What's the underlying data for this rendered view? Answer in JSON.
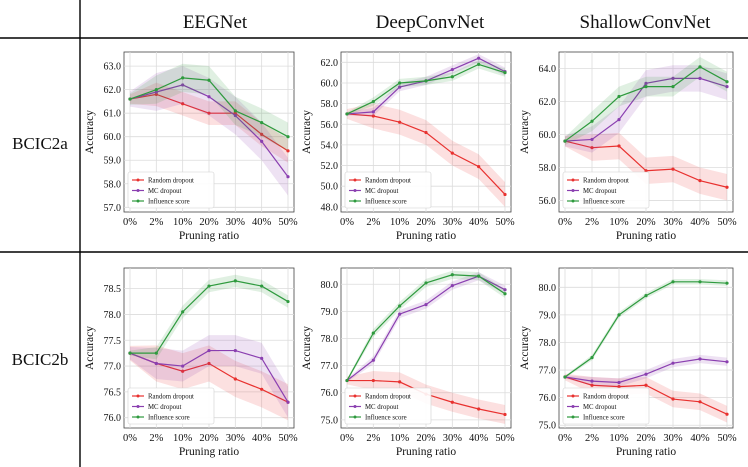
{
  "layout_labels": {
    "columns": [
      "EEGNet",
      "DeepConvNet",
      "ShallowConvNet"
    ],
    "rows": [
      "BCIC2a",
      "BCIC2b"
    ]
  },
  "legend_labels": [
    "Random dropout",
    "MC dropout",
    "Influence score"
  ],
  "colors": {
    "random": "#e8312f",
    "mc": "#8a3fb0",
    "influence": "#2e9a3e",
    "grid": "#dcdcdc"
  },
  "chart_data": [
    {
      "id": "bcic2a-eegnet",
      "type": "line",
      "row": "BCIC2a",
      "model": "EEGNet",
      "xlabel": "Pruning ratio",
      "ylabel": "Accuracy",
      "categories": [
        "0%",
        "2%",
        "10%",
        "20%",
        "30%",
        "40%",
        "50%"
      ],
      "ylim": [
        56.8,
        63.6
      ],
      "yticks": [
        57.0,
        58.0,
        59.0,
        60.0,
        61.0,
        62.0,
        63.0
      ],
      "ytick_decimals": 1,
      "legend": "bottom-left",
      "series": [
        {
          "name": "Random dropout",
          "values": [
            61.6,
            61.8,
            61.4,
            61.0,
            61.0,
            60.1,
            59.4
          ],
          "band": 0.5
        },
        {
          "name": "MC dropout",
          "values": [
            61.6,
            61.9,
            62.2,
            61.7,
            60.9,
            59.8,
            58.3
          ],
          "band": 0.8
        },
        {
          "name": "Influence score",
          "values": [
            61.6,
            62.0,
            62.5,
            62.4,
            61.1,
            60.6,
            60.0
          ],
          "band": 0.6
        }
      ]
    },
    {
      "id": "bcic2a-deepconvnet",
      "type": "line",
      "row": "BCIC2a",
      "model": "DeepConvNet",
      "xlabel": "Pruning ratio",
      "ylabel": "Accuracy",
      "categories": [
        "0%",
        "2%",
        "10%",
        "20%",
        "30%",
        "40%",
        "50%"
      ],
      "ylim": [
        47.5,
        63.0
      ],
      "yticks": [
        48.0,
        50.0,
        52.0,
        54.0,
        56.0,
        58.0,
        60.0,
        62.0
      ],
      "ytick_decimals": 1,
      "legend": "bottom-left",
      "series": [
        {
          "name": "Random dropout",
          "values": [
            57.0,
            56.8,
            56.2,
            55.2,
            53.2,
            51.9,
            49.2
          ],
          "band": 1.2
        },
        {
          "name": "MC dropout",
          "values": [
            57.0,
            57.2,
            59.6,
            60.2,
            61.3,
            62.4,
            61.1
          ],
          "band": 0.4
        },
        {
          "name": "Influence score",
          "values": [
            57.0,
            58.2,
            60.0,
            60.2,
            60.6,
            61.8,
            61.0
          ],
          "band": 0.4
        }
      ]
    },
    {
      "id": "bcic2a-shallowconvnet",
      "type": "line",
      "row": "BCIC2a",
      "model": "ShallowConvNet",
      "xlabel": "Pruning ratio",
      "ylabel": "Accuracy",
      "categories": [
        "0%",
        "2%",
        "10%",
        "20%",
        "30%",
        "40%",
        "50%"
      ],
      "ylim": [
        55.3,
        65.0
      ],
      "yticks": [
        56.0,
        58.0,
        60.0,
        62.0,
        64.0
      ],
      "ytick_decimals": 1,
      "legend": "bottom-left",
      "series": [
        {
          "name": "Random dropout",
          "values": [
            59.6,
            59.2,
            59.3,
            57.8,
            57.9,
            57.2,
            56.8
          ],
          "band": 0.8
        },
        {
          "name": "MC dropout",
          "values": [
            59.6,
            59.7,
            60.9,
            63.1,
            63.4,
            63.4,
            62.9
          ],
          "band": 0.8
        },
        {
          "name": "Influence score",
          "values": [
            59.6,
            60.8,
            62.3,
            62.9,
            62.9,
            64.1,
            63.2
          ],
          "band": 0.6
        }
      ]
    },
    {
      "id": "bcic2b-eegnet",
      "type": "line",
      "row": "BCIC2b",
      "model": "EEGNet",
      "xlabel": "Pruning ratio",
      "ylabel": "Accuracy",
      "categories": [
        "0%",
        "2%",
        "10%",
        "20%",
        "30%",
        "40%",
        "50%"
      ],
      "ylim": [
        75.8,
        78.9
      ],
      "yticks": [
        76.0,
        76.5,
        77.0,
        77.5,
        78.0,
        78.5
      ],
      "ytick_decimals": 1,
      "legend": "bottom-left",
      "series": [
        {
          "name": "Random dropout",
          "values": [
            77.25,
            77.05,
            76.9,
            77.05,
            76.75,
            76.55,
            76.3
          ],
          "band": 0.35
        },
        {
          "name": "MC dropout",
          "values": [
            77.25,
            77.05,
            77.0,
            77.3,
            77.3,
            77.15,
            76.3
          ],
          "band": 0.3
        },
        {
          "name": "Influence score",
          "values": [
            77.25,
            77.25,
            78.05,
            78.55,
            78.65,
            78.55,
            78.25
          ],
          "band": 0.12
        }
      ]
    },
    {
      "id": "bcic2b-deepconvnet",
      "type": "line",
      "row": "BCIC2b",
      "model": "DeepConvNet",
      "xlabel": "Pruning ratio",
      "ylabel": "Accuracy",
      "categories": [
        "0%",
        "2%",
        "10%",
        "20%",
        "30%",
        "40%",
        "50%"
      ],
      "ylim": [
        74.7,
        80.6
      ],
      "yticks": [
        75.0,
        76.0,
        77.0,
        78.0,
        79.0,
        80.0
      ],
      "ytick_decimals": 1,
      "legend": "bottom-left",
      "series": [
        {
          "name": "Random dropout",
          "values": [
            76.45,
            76.45,
            76.4,
            75.95,
            75.65,
            75.4,
            75.2
          ],
          "band": 0.35
        },
        {
          "name": "MC dropout",
          "values": [
            76.45,
            77.2,
            78.9,
            79.25,
            79.95,
            80.3,
            79.8
          ],
          "band": 0.15
        },
        {
          "name": "Influence score",
          "values": [
            76.45,
            78.2,
            79.2,
            80.05,
            80.35,
            80.3,
            79.65
          ],
          "band": 0.15
        }
      ]
    },
    {
      "id": "bcic2b-shallowconvnet",
      "type": "line",
      "row": "BCIC2b",
      "model": "ShallowConvNet",
      "xlabel": "Pruning ratio",
      "ylabel": "Accuracy",
      "categories": [
        "0%",
        "2%",
        "10%",
        "20%",
        "30%",
        "40%",
        "50%"
      ],
      "ylim": [
        74.9,
        80.7
      ],
      "yticks": [
        75.0,
        76.0,
        77.0,
        78.0,
        79.0,
        80.0
      ],
      "ytick_decimals": 1,
      "legend": "bottom-left",
      "series": [
        {
          "name": "Random dropout",
          "values": [
            76.75,
            76.45,
            76.4,
            76.45,
            75.95,
            75.85,
            75.4
          ],
          "band": 0.3
        },
        {
          "name": "MC dropout",
          "values": [
            76.75,
            76.6,
            76.55,
            76.85,
            77.25,
            77.4,
            77.3
          ],
          "band": 0.15
        },
        {
          "name": "Influence score",
          "values": [
            76.75,
            77.45,
            79.0,
            79.7,
            80.2,
            80.2,
            80.15
          ],
          "band": 0.1
        }
      ]
    }
  ]
}
